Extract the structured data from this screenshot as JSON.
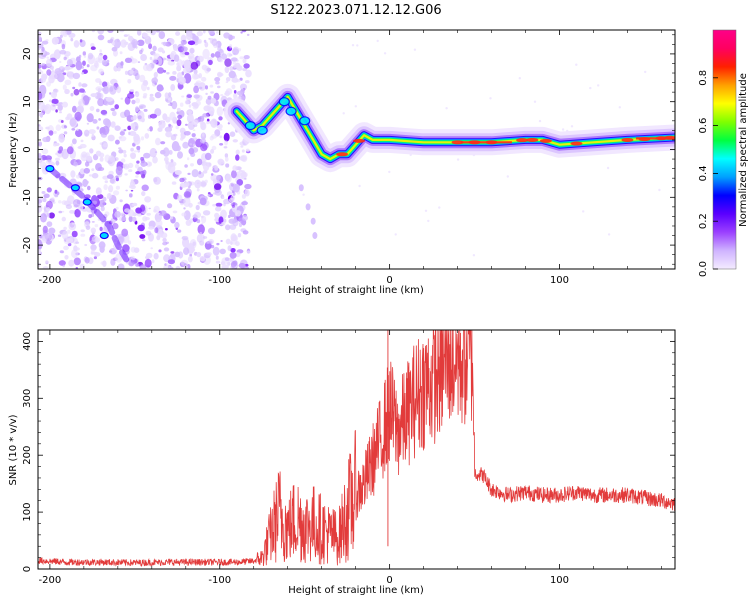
{
  "title": "S122.2023.071.12.12.G06",
  "chart_data": [
    {
      "type": "heatmap",
      "ylabel": "Frequency (Hz)",
      "xlabel": "Height of straight line (km)",
      "xlim": [
        -207,
        168
      ],
      "ylim": [
        -25,
        25
      ],
      "x_ticks": [
        -200,
        -100,
        0,
        100
      ],
      "y_ticks": [
        -20,
        -10,
        0,
        10,
        20
      ],
      "colorbar": {
        "label": "Normalized spectral amplitude",
        "range": [
          0,
          1
        ],
        "ticks": [
          "0.0",
          "0.2",
          "0.4",
          "0.6",
          "0.8"
        ],
        "colors": [
          "#f4ecff",
          "#cfb3ff",
          "#9b40ff",
          "#5a00ff",
          "#0000ff",
          "#00a0ff",
          "#00ffff",
          "#00ff40",
          "#80ff00",
          "#ffff00",
          "#ffa000",
          "#ff2000",
          "#ff0060",
          "#ff0088"
        ]
      },
      "signal_track": [
        {
          "x": -90,
          "y": 8
        },
        {
          "x": -85,
          "y": 6
        },
        {
          "x": -80,
          "y": 4
        },
        {
          "x": -75,
          "y": 5
        },
        {
          "x": -70,
          "y": 7
        },
        {
          "x": -65,
          "y": 9
        },
        {
          "x": -60,
          "y": 11
        },
        {
          "x": -55,
          "y": 8
        },
        {
          "x": -50,
          "y": 5
        },
        {
          "x": -45,
          "y": 2
        },
        {
          "x": -40,
          "y": -1
        },
        {
          "x": -35,
          "y": -2
        },
        {
          "x": -30,
          "y": -1
        },
        {
          "x": -25,
          "y": -1
        },
        {
          "x": -20,
          "y": 1
        },
        {
          "x": -15,
          "y": 3
        },
        {
          "x": -10,
          "y": 2
        },
        {
          "x": 0,
          "y": 2
        },
        {
          "x": 20,
          "y": 1.5
        },
        {
          "x": 40,
          "y": 1.5
        },
        {
          "x": 60,
          "y": 1.5
        },
        {
          "x": 80,
          "y": 2
        },
        {
          "x": 90,
          "y": 2
        },
        {
          "x": 100,
          "y": 1
        },
        {
          "x": 120,
          "y": 1.5
        },
        {
          "x": 140,
          "y": 2
        },
        {
          "x": 168,
          "y": 2.5
        }
      ],
      "secondary_track": [
        {
          "x": -200,
          "y": -4
        },
        {
          "x": -190,
          "y": -7
        },
        {
          "x": -180,
          "y": -10
        },
        {
          "x": -170,
          "y": -14
        },
        {
          "x": -165,
          "y": -16
        },
        {
          "x": -160,
          "y": -20
        },
        {
          "x": -155,
          "y": -23
        }
      ]
    },
    {
      "type": "line",
      "ylabel": "SNR (10 * v/v)",
      "xlabel": "Height of straight line (km)",
      "xlim": [
        -207,
        168
      ],
      "ylim": [
        0,
        420
      ],
      "x_ticks": [
        -200,
        -100,
        0,
        100
      ],
      "y_ticks": [
        0,
        100,
        200,
        300,
        400
      ],
      "color": "#e23b3b",
      "series": [
        {
          "x": [
            -207,
            -190,
            -170,
            -150,
            -130,
            -110,
            -90,
            -80,
            -75,
            -70,
            -65,
            -60,
            -55,
            -50,
            -45,
            -40,
            -35,
            -30,
            -25,
            -20,
            -15,
            -10,
            -5,
            0,
            5,
            10,
            15,
            20,
            25,
            30,
            35,
            40,
            45,
            49,
            50,
            55,
            60,
            70,
            80,
            90,
            100,
            110,
            120,
            130,
            140,
            150,
            160,
            168
          ],
          "values": [
            15,
            12,
            12,
            11,
            12,
            12,
            12,
            14,
            20,
            60,
            100,
            70,
            90,
            75,
            80,
            70,
            60,
            55,
            100,
            130,
            150,
            190,
            230,
            280,
            240,
            270,
            300,
            320,
            330,
            350,
            380,
            370,
            375,
            380,
            170,
            165,
            140,
            130,
            135,
            130,
            130,
            135,
            130,
            130,
            130,
            125,
            120,
            115
          ]
        }
      ]
    }
  ]
}
